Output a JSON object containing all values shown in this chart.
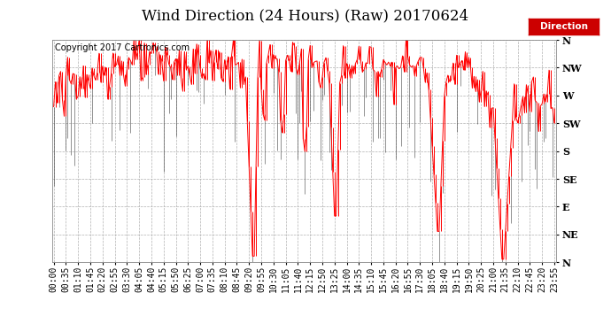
{
  "title": "Wind Direction (24 Hours) (Raw) 20170624",
  "copyright": "Copyright 2017 Cartronics.com",
  "legend_label": "Direction",
  "bg_color": "#ffffff",
  "plot_bg_color": "#ffffff",
  "line_color": "#ff0000",
  "dark_color": "#404040",
  "ytick_labels": [
    "N",
    "NW",
    "W",
    "SW",
    "S",
    "SE",
    "E",
    "NE",
    "N"
  ],
  "ytick_values": [
    360,
    315,
    270,
    225,
    180,
    135,
    90,
    45,
    0
  ],
  "ylim": [
    0,
    360
  ],
  "grid_color": "#b0b0b0",
  "title_fontsize": 12,
  "copyright_fontsize": 7,
  "tick_fontsize": 7,
  "ytick_fontsize": 8
}
